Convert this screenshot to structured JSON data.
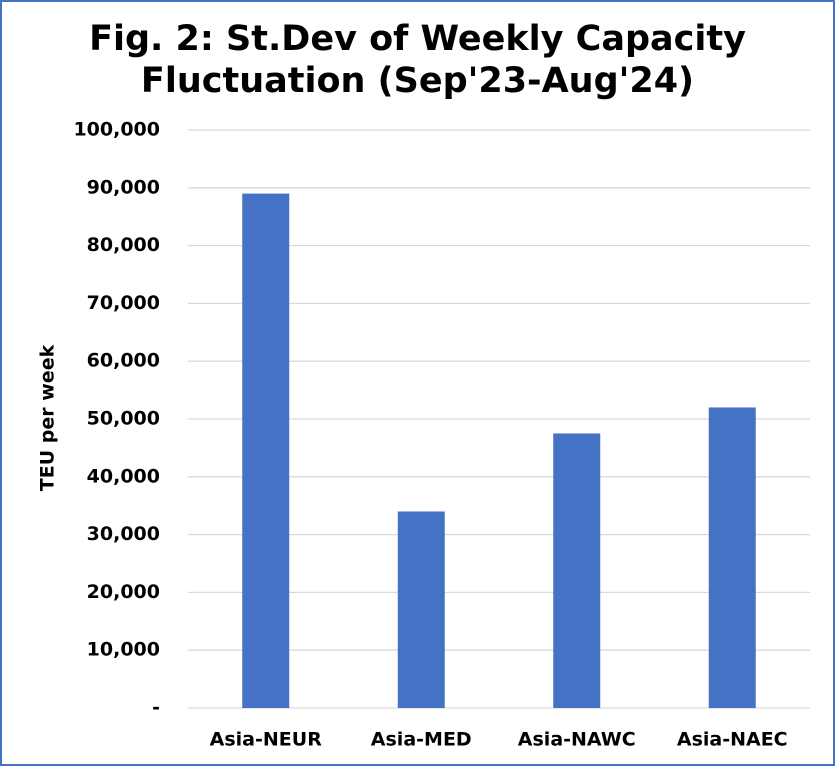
{
  "chart_data": {
    "type": "bar",
    "title_line1": "Fig. 2: St.Dev of Weekly Capacity",
    "title_line2": "Fluctuation (Sep'23-Aug'24)",
    "xlabel": "",
    "ylabel": "TEU per week",
    "categories": [
      "Asia-NEUR",
      "Asia-MED",
      "Asia-NAWC",
      "Asia-NAEC"
    ],
    "values": [
      89000,
      34000,
      47500,
      52000
    ],
    "ylim": [
      0,
      100000
    ],
    "yticks": [
      0,
      10000,
      20000,
      30000,
      40000,
      50000,
      60000,
      70000,
      80000,
      90000,
      100000
    ],
    "ytick_labels": [
      "-",
      "10,000",
      "20,000",
      "30,000",
      "40,000",
      "50,000",
      "60,000",
      "70,000",
      "80,000",
      "90,000",
      "100,000"
    ],
    "grid": true,
    "legend": "none",
    "bar_color": "#4472C4",
    "grid_color": "#D9D9D9",
    "border_color": "#4472C4"
  }
}
